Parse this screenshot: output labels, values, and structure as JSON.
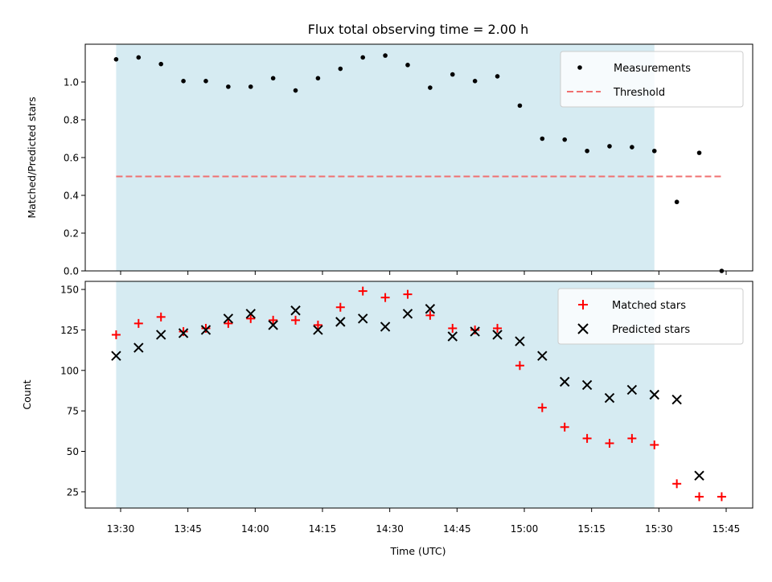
{
  "chart_data": [
    {
      "type": "scatter",
      "title": "Flux total observing time = 2.00 h",
      "xlabel": "",
      "ylabel": "Matched/Predicted stars",
      "ylim": [
        0,
        1.2
      ],
      "yticks": [
        "0.0",
        "0.2",
        "0.4",
        "0.6",
        "0.8",
        "1.0"
      ],
      "yticks_values": [
        0,
        0.2,
        0.4,
        0.6,
        0.8,
        1.0
      ],
      "shaded_region": [
        "13:29",
        "15:29"
      ],
      "legend_position": "top-right",
      "series": [
        {
          "name": "Measurements",
          "color": "#000000",
          "marker": "dot",
          "x": [
            "13:29",
            "13:34",
            "13:39",
            "13:44",
            "13:49",
            "13:54",
            "13:59",
            "14:04",
            "14:09",
            "14:14",
            "14:19",
            "14:24",
            "14:29",
            "14:34",
            "14:39",
            "14:44",
            "14:49",
            "14:54",
            "14:59",
            "15:04",
            "15:09",
            "15:14",
            "15:19",
            "15:24",
            "15:29",
            "15:34",
            "15:39",
            "15:44"
          ],
          "y": [
            1.12,
            1.13,
            1.095,
            1.005,
            1.005,
            0.975,
            0.975,
            1.02,
            0.955,
            1.02,
            1.07,
            1.13,
            1.14,
            1.09,
            0.97,
            1.04,
            1.005,
            1.03,
            0.875,
            0.7,
            0.695,
            0.635,
            0.66,
            0.655,
            0.635,
            0.365,
            0.625,
            0.0
          ]
        },
        {
          "name": "Threshold",
          "color": "#f07070",
          "style": "dashed",
          "x": [
            "13:29",
            "15:44"
          ],
          "y": [
            0.5,
            0.5
          ]
        }
      ]
    },
    {
      "type": "scatter",
      "title": "",
      "xlabel": "Time (UTC)",
      "ylabel": "Count",
      "ylim": [
        15,
        155
      ],
      "yticks": [
        "25",
        "50",
        "75",
        "100",
        "125",
        "150"
      ],
      "yticks_values": [
        25,
        50,
        75,
        100,
        125,
        150
      ],
      "xticks": [
        "13:30",
        "13:45",
        "14:00",
        "14:15",
        "14:30",
        "14:45",
        "15:00",
        "15:15",
        "15:30",
        "15:45"
      ],
      "shaded_region": [
        "13:29",
        "15:29"
      ],
      "legend_position": "top-right",
      "series": [
        {
          "name": "Matched stars",
          "color": "#ff0000",
          "marker": "plus",
          "x": [
            "13:29",
            "13:34",
            "13:39",
            "13:44",
            "13:49",
            "13:54",
            "13:59",
            "14:04",
            "14:09",
            "14:14",
            "14:19",
            "14:24",
            "14:29",
            "14:34",
            "14:39",
            "14:44",
            "14:49",
            "14:54",
            "14:59",
            "15:04",
            "15:09",
            "15:14",
            "15:19",
            "15:24",
            "15:29",
            "15:34",
            "15:39",
            "15:44"
          ],
          "y": [
            122,
            129,
            133,
            124,
            126,
            129,
            132,
            131,
            131,
            128,
            139,
            149,
            145,
            147,
            134,
            126,
            125,
            126,
            103,
            77,
            65,
            58,
            55,
            58,
            54,
            30,
            22,
            22
          ]
        },
        {
          "name": "Predicted stars",
          "color": "#000000",
          "marker": "x",
          "x": [
            "13:29",
            "13:34",
            "13:39",
            "13:44",
            "13:49",
            "13:54",
            "13:59",
            "14:04",
            "14:09",
            "14:14",
            "14:19",
            "14:24",
            "14:29",
            "14:34",
            "14:39",
            "14:44",
            "14:49",
            "14:54",
            "14:59",
            "15:04",
            "15:09",
            "15:14",
            "15:19",
            "15:24",
            "15:29",
            "15:34",
            "15:39"
          ],
          "y": [
            109,
            114,
            122,
            123,
            125,
            132,
            135,
            128,
            137,
            125,
            130,
            132,
            127,
            135,
            138,
            121,
            124,
            122,
            118,
            109,
            93,
            91,
            83,
            88,
            85,
            82,
            35
          ]
        }
      ]
    }
  ]
}
